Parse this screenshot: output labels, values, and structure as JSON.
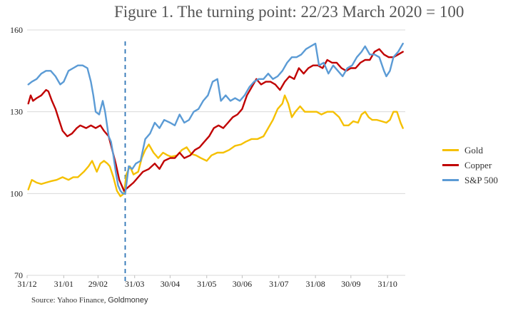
{
  "page": {
    "title": "Figure 1. The turning point: 22/23 March 2020 = 100",
    "source_prefix": "Source: Yahoo Finance, ",
    "source_suffix": "Goldmoney"
  },
  "chart_data": {
    "type": "line",
    "title": "Figure 1. The turning point: 22/23 March 2020 = 100",
    "xlabel": "",
    "ylabel": "",
    "x_range": [
      "2019-12-31",
      "2020-11-15"
    ],
    "ylim": [
      70,
      160
    ],
    "y_ticks": [
      70,
      100,
      130,
      160
    ],
    "x_ticks": [
      {
        "date": "2019-12-31",
        "label": "31/12"
      },
      {
        "date": "2020-01-31",
        "label": "31/01"
      },
      {
        "date": "2020-02-29",
        "label": "29/02"
      },
      {
        "date": "2020-03-31",
        "label": "31/03"
      },
      {
        "date": "2020-04-30",
        "label": "30/04"
      },
      {
        "date": "2020-05-31",
        "label": "31/05"
      },
      {
        "date": "2020-06-30",
        "label": "30/06"
      },
      {
        "date": "2020-07-31",
        "label": "31/07"
      },
      {
        "date": "2020-08-31",
        "label": "31/08"
      },
      {
        "date": "2020-09-30",
        "label": "30/09"
      },
      {
        "date": "2020-10-31",
        "label": "31/10"
      }
    ],
    "grid": "horizontal",
    "legend_position": "right",
    "reference_line": {
      "date": "2020-03-23",
      "style": "dashed",
      "color": "#2e75b6"
    },
    "series": [
      {
        "name": "Gold",
        "color": "#f5c000",
        "points": [
          [
            "2020-01-01",
            101.5
          ],
          [
            "2020-01-04",
            105
          ],
          [
            "2020-01-08",
            104
          ],
          [
            "2020-01-12",
            103.5
          ],
          [
            "2020-01-16",
            104
          ],
          [
            "2020-01-20",
            104.5
          ],
          [
            "2020-01-25",
            105
          ],
          [
            "2020-01-30",
            106
          ],
          [
            "2020-02-04",
            105
          ],
          [
            "2020-02-08",
            106
          ],
          [
            "2020-02-12",
            106
          ],
          [
            "2020-02-17",
            108
          ],
          [
            "2020-02-21",
            110
          ],
          [
            "2020-02-24",
            112
          ],
          [
            "2020-02-28",
            108
          ],
          [
            "2020-03-02",
            111
          ],
          [
            "2020-03-05",
            112
          ],
          [
            "2020-03-08",
            111
          ],
          [
            "2020-03-10",
            110
          ],
          [
            "2020-03-13",
            106
          ],
          [
            "2020-03-16",
            101
          ],
          [
            "2020-03-19",
            99
          ],
          [
            "2020-03-22",
            100
          ],
          [
            "2020-03-24",
            107
          ],
          [
            "2020-03-27",
            110
          ],
          [
            "2020-03-30",
            107
          ],
          [
            "2020-04-03",
            108
          ],
          [
            "2020-04-06",
            113
          ],
          [
            "2020-04-09",
            116
          ],
          [
            "2020-04-12",
            118
          ],
          [
            "2020-04-16",
            115
          ],
          [
            "2020-04-20",
            113
          ],
          [
            "2020-04-24",
            115
          ],
          [
            "2020-04-28",
            114
          ],
          [
            "2020-05-01",
            113.5
          ],
          [
            "2020-05-06",
            114
          ],
          [
            "2020-05-10",
            116
          ],
          [
            "2020-05-14",
            117
          ],
          [
            "2020-05-18",
            114.5
          ],
          [
            "2020-05-22",
            114
          ],
          [
            "2020-05-26",
            113
          ],
          [
            "2020-05-31",
            112
          ],
          [
            "2020-06-04",
            114
          ],
          [
            "2020-06-09",
            115
          ],
          [
            "2020-06-14",
            115
          ],
          [
            "2020-06-19",
            116
          ],
          [
            "2020-06-24",
            117.5
          ],
          [
            "2020-06-29",
            118
          ],
          [
            "2020-07-03",
            119
          ],
          [
            "2020-07-08",
            120
          ],
          [
            "2020-07-13",
            120
          ],
          [
            "2020-07-18",
            121
          ],
          [
            "2020-07-22",
            124
          ],
          [
            "2020-07-26",
            127
          ],
          [
            "2020-07-30",
            131
          ],
          [
            "2020-08-03",
            133
          ],
          [
            "2020-08-05",
            136
          ],
          [
            "2020-08-08",
            133
          ],
          [
            "2020-08-11",
            128
          ],
          [
            "2020-08-14",
            130
          ],
          [
            "2020-08-18",
            132
          ],
          [
            "2020-08-22",
            130
          ],
          [
            "2020-08-27",
            130
          ],
          [
            "2020-09-01",
            130
          ],
          [
            "2020-09-05",
            129
          ],
          [
            "2020-09-10",
            130
          ],
          [
            "2020-09-15",
            130
          ],
          [
            "2020-09-20",
            128
          ],
          [
            "2020-09-24",
            125
          ],
          [
            "2020-09-28",
            125
          ],
          [
            "2020-10-02",
            126.5
          ],
          [
            "2020-10-06",
            126
          ],
          [
            "2020-10-09",
            129
          ],
          [
            "2020-10-12",
            130
          ],
          [
            "2020-10-15",
            128
          ],
          [
            "2020-10-18",
            127
          ],
          [
            "2020-10-22",
            127
          ],
          [
            "2020-10-26",
            126.5
          ],
          [
            "2020-10-30",
            126
          ],
          [
            "2020-11-02",
            127
          ],
          [
            "2020-11-05",
            130
          ],
          [
            "2020-11-08",
            130
          ],
          [
            "2020-11-11",
            126
          ],
          [
            "2020-11-13",
            124
          ]
        ]
      },
      {
        "name": "Copper",
        "color": "#c00000",
        "points": [
          [
            "2020-01-01",
            133
          ],
          [
            "2020-01-03",
            136
          ],
          [
            "2020-01-05",
            134
          ],
          [
            "2020-01-08",
            135
          ],
          [
            "2020-01-12",
            136
          ],
          [
            "2020-01-16",
            138
          ],
          [
            "2020-01-18",
            137.5
          ],
          [
            "2020-01-21",
            134
          ],
          [
            "2020-01-24",
            131
          ],
          [
            "2020-01-27",
            127
          ],
          [
            "2020-01-30",
            123
          ],
          [
            "2020-02-03",
            121
          ],
          [
            "2020-02-07",
            122
          ],
          [
            "2020-02-11",
            124
          ],
          [
            "2020-02-14",
            125
          ],
          [
            "2020-02-19",
            124
          ],
          [
            "2020-02-23",
            125
          ],
          [
            "2020-02-27",
            124
          ],
          [
            "2020-03-02",
            125
          ],
          [
            "2020-03-05",
            123
          ],
          [
            "2020-03-09",
            121
          ],
          [
            "2020-03-12",
            116
          ],
          [
            "2020-03-15",
            111
          ],
          [
            "2020-03-18",
            105
          ],
          [
            "2020-03-22",
            101
          ],
          [
            "2020-03-26",
            102.5
          ],
          [
            "2020-03-30",
            104
          ],
          [
            "2020-04-03",
            106
          ],
          [
            "2020-04-07",
            108
          ],
          [
            "2020-04-12",
            109
          ],
          [
            "2020-04-17",
            111
          ],
          [
            "2020-04-21",
            109
          ],
          [
            "2020-04-25",
            112
          ],
          [
            "2020-04-30",
            113
          ],
          [
            "2020-05-04",
            113
          ],
          [
            "2020-05-08",
            115
          ],
          [
            "2020-05-12",
            113
          ],
          [
            "2020-05-17",
            114
          ],
          [
            "2020-05-21",
            116
          ],
          [
            "2020-05-25",
            117
          ],
          [
            "2020-05-29",
            119
          ],
          [
            "2020-06-02",
            121
          ],
          [
            "2020-06-06",
            124
          ],
          [
            "2020-06-10",
            125
          ],
          [
            "2020-06-14",
            124
          ],
          [
            "2020-06-18",
            126
          ],
          [
            "2020-06-22",
            128
          ],
          [
            "2020-06-26",
            129
          ],
          [
            "2020-06-30",
            131
          ],
          [
            "2020-07-04",
            136
          ],
          [
            "2020-07-08",
            139
          ],
          [
            "2020-07-12",
            142
          ],
          [
            "2020-07-16",
            140
          ],
          [
            "2020-07-20",
            141
          ],
          [
            "2020-07-24",
            141
          ],
          [
            "2020-07-28",
            140
          ],
          [
            "2020-08-01",
            138
          ],
          [
            "2020-08-05",
            141
          ],
          [
            "2020-08-09",
            143
          ],
          [
            "2020-08-13",
            142
          ],
          [
            "2020-08-17",
            146
          ],
          [
            "2020-08-21",
            144
          ],
          [
            "2020-08-25",
            146
          ],
          [
            "2020-08-29",
            147
          ],
          [
            "2020-09-02",
            147
          ],
          [
            "2020-09-06",
            146
          ],
          [
            "2020-09-10",
            149
          ],
          [
            "2020-09-14",
            148
          ],
          [
            "2020-09-18",
            148
          ],
          [
            "2020-09-22",
            146
          ],
          [
            "2020-09-26",
            145
          ],
          [
            "2020-09-30",
            146
          ],
          [
            "2020-10-04",
            146
          ],
          [
            "2020-10-08",
            148
          ],
          [
            "2020-10-12",
            149
          ],
          [
            "2020-10-16",
            149
          ],
          [
            "2020-10-20",
            152
          ],
          [
            "2020-10-24",
            153
          ],
          [
            "2020-10-28",
            151
          ],
          [
            "2020-11-01",
            150
          ],
          [
            "2020-11-05",
            150
          ],
          [
            "2020-11-09",
            151
          ],
          [
            "2020-11-13",
            152
          ]
        ]
      },
      {
        "name": "S&P 500",
        "color": "#5b9bd5",
        "points": [
          [
            "2020-01-01",
            140
          ],
          [
            "2020-01-04",
            141
          ],
          [
            "2020-01-08",
            142
          ],
          [
            "2020-01-12",
            144
          ],
          [
            "2020-01-16",
            145
          ],
          [
            "2020-01-20",
            145
          ],
          [
            "2020-01-24",
            143
          ],
          [
            "2020-01-28",
            140
          ],
          [
            "2020-01-31",
            141
          ],
          [
            "2020-02-04",
            145
          ],
          [
            "2020-02-08",
            146
          ],
          [
            "2020-02-12",
            147
          ],
          [
            "2020-02-16",
            147
          ],
          [
            "2020-02-20",
            146
          ],
          [
            "2020-02-23",
            141
          ],
          [
            "2020-02-25",
            136
          ],
          [
            "2020-02-27",
            130
          ],
          [
            "2020-03-01",
            129
          ],
          [
            "2020-03-04",
            134
          ],
          [
            "2020-03-06",
            130
          ],
          [
            "2020-03-09",
            121
          ],
          [
            "2020-03-11",
            119
          ],
          [
            "2020-03-13",
            114
          ],
          [
            "2020-03-15",
            108
          ],
          [
            "2020-03-17",
            103
          ],
          [
            "2020-03-19",
            101
          ],
          [
            "2020-03-21",
            100
          ],
          [
            "2020-03-23",
            100
          ],
          [
            "2020-03-26",
            110
          ],
          [
            "2020-03-29",
            109
          ],
          [
            "2020-04-01",
            111
          ],
          [
            "2020-04-05",
            112
          ],
          [
            "2020-04-09",
            120
          ],
          [
            "2020-04-13",
            122
          ],
          [
            "2020-04-17",
            126
          ],
          [
            "2020-04-21",
            124
          ],
          [
            "2020-04-25",
            127
          ],
          [
            "2020-04-30",
            126
          ],
          [
            "2020-05-04",
            125
          ],
          [
            "2020-05-08",
            129
          ],
          [
            "2020-05-12",
            126
          ],
          [
            "2020-05-16",
            127
          ],
          [
            "2020-05-20",
            130
          ],
          [
            "2020-05-24",
            131
          ],
          [
            "2020-05-28",
            134
          ],
          [
            "2020-06-01",
            136
          ],
          [
            "2020-06-05",
            141
          ],
          [
            "2020-06-09",
            142
          ],
          [
            "2020-06-12",
            134
          ],
          [
            "2020-06-16",
            136
          ],
          [
            "2020-06-20",
            134
          ],
          [
            "2020-06-24",
            135
          ],
          [
            "2020-06-28",
            134
          ],
          [
            "2020-07-02",
            136
          ],
          [
            "2020-07-06",
            139
          ],
          [
            "2020-07-10",
            141
          ],
          [
            "2020-07-14",
            142
          ],
          [
            "2020-07-18",
            142
          ],
          [
            "2020-07-22",
            144
          ],
          [
            "2020-07-26",
            142
          ],
          [
            "2020-07-30",
            143
          ],
          [
            "2020-08-03",
            145
          ],
          [
            "2020-08-07",
            148
          ],
          [
            "2020-08-11",
            150
          ],
          [
            "2020-08-15",
            150
          ],
          [
            "2020-08-19",
            151
          ],
          [
            "2020-08-23",
            153
          ],
          [
            "2020-08-27",
            154
          ],
          [
            "2020-08-31",
            155
          ],
          [
            "2020-09-03",
            147
          ],
          [
            "2020-09-07",
            148
          ],
          [
            "2020-09-11",
            144
          ],
          [
            "2020-09-15",
            147
          ],
          [
            "2020-09-19",
            145
          ],
          [
            "2020-09-23",
            143
          ],
          [
            "2020-09-27",
            146
          ],
          [
            "2020-10-01",
            147
          ],
          [
            "2020-10-05",
            150
          ],
          [
            "2020-10-09",
            152
          ],
          [
            "2020-10-12",
            154
          ],
          [
            "2020-10-16",
            151
          ],
          [
            "2020-10-20",
            151
          ],
          [
            "2020-10-24",
            150
          ],
          [
            "2020-10-28",
            145
          ],
          [
            "2020-10-30",
            143
          ],
          [
            "2020-11-02",
            145
          ],
          [
            "2020-11-05",
            150
          ],
          [
            "2020-11-09",
            152
          ],
          [
            "2020-11-13",
            155
          ]
        ]
      }
    ]
  }
}
